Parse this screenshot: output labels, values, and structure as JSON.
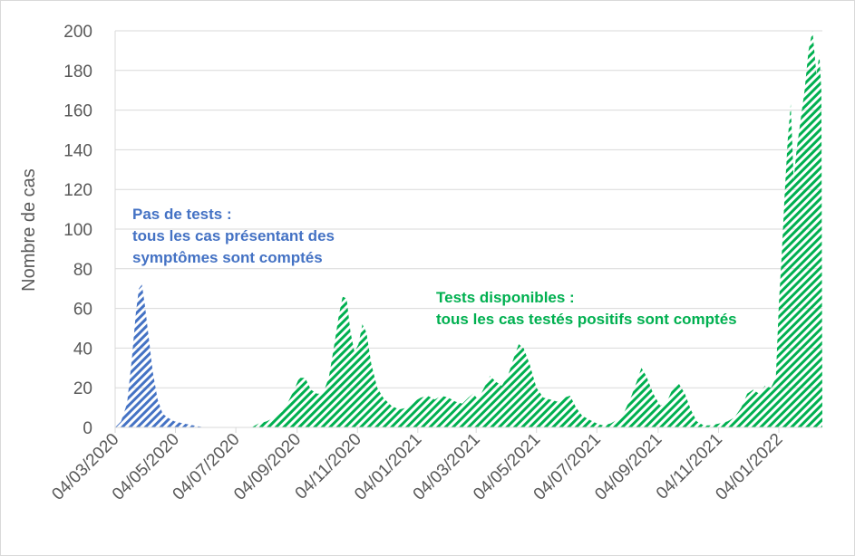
{
  "colors": {
    "phase1": "#4472c4",
    "phase2": "#00b050",
    "grid": "#d9d9d9",
    "text": "#595959"
  },
  "chart_data": {
    "type": "area",
    "title": "",
    "xlabel": "",
    "ylabel": "Nombre de cas",
    "ylim": [
      0,
      200
    ],
    "y_ticks": [
      0,
      20,
      40,
      60,
      80,
      100,
      120,
      140,
      160,
      180,
      200
    ],
    "xlim": [
      "2020-03-04",
      "2022-02-17"
    ],
    "x_ticks": [
      "04/03/2020",
      "04/05/2020",
      "04/07/2020",
      "04/09/2020",
      "04/11/2020",
      "04/01/2021",
      "04/03/2021",
      "04/05/2021",
      "04/07/2021",
      "04/09/2021",
      "04/11/2021",
      "04/01/2022"
    ],
    "grid": true,
    "series": [
      {
        "color": "#4472c4",
        "pattern": "diagonal-hatch",
        "points": [
          [
            "2020-03-04",
            0
          ],
          [
            "2020-03-10",
            3
          ],
          [
            "2020-03-16",
            12
          ],
          [
            "2020-03-21",
            35
          ],
          [
            "2020-03-25",
            58
          ],
          [
            "2020-03-28",
            70
          ],
          [
            "2020-03-31",
            72
          ],
          [
            "2020-04-03",
            62
          ],
          [
            "2020-04-07",
            45
          ],
          [
            "2020-04-11",
            28
          ],
          [
            "2020-04-16",
            14
          ],
          [
            "2020-04-21",
            7
          ],
          [
            "2020-04-26",
            5
          ],
          [
            "2020-05-03",
            3
          ],
          [
            "2020-05-12",
            2
          ],
          [
            "2020-05-22",
            1
          ],
          [
            "2020-06-02",
            0
          ]
        ]
      },
      {
        "color": "#00b050",
        "pattern": "diagonal-hatch",
        "points": [
          [
            "2020-07-20",
            0
          ],
          [
            "2020-07-27",
            2
          ],
          [
            "2020-08-04",
            3
          ],
          [
            "2020-08-12",
            5
          ],
          [
            "2020-08-20",
            8
          ],
          [
            "2020-08-26",
            13
          ],
          [
            "2020-09-01",
            19
          ],
          [
            "2020-09-06",
            25
          ],
          [
            "2020-09-12",
            25
          ],
          [
            "2020-09-18",
            19
          ],
          [
            "2020-09-24",
            17
          ],
          [
            "2020-09-30",
            17
          ],
          [
            "2020-10-06",
            25
          ],
          [
            "2020-10-11",
            40
          ],
          [
            "2020-10-16",
            56
          ],
          [
            "2020-10-20",
            66
          ],
          [
            "2020-10-24",
            65
          ],
          [
            "2020-10-28",
            48
          ],
          [
            "2020-11-01",
            38
          ],
          [
            "2020-11-05",
            42
          ],
          [
            "2020-11-09",
            52
          ],
          [
            "2020-11-13",
            48
          ],
          [
            "2020-11-18",
            32
          ],
          [
            "2020-11-24",
            20
          ],
          [
            "2020-11-30",
            15
          ],
          [
            "2020-12-08",
            11
          ],
          [
            "2020-12-16",
            9
          ],
          [
            "2020-12-24",
            10
          ],
          [
            "2020-12-31",
            13
          ],
          [
            "2021-01-07",
            15
          ],
          [
            "2021-01-14",
            16
          ],
          [
            "2021-01-21",
            14
          ],
          [
            "2021-01-28",
            16
          ],
          [
            "2021-02-04",
            15
          ],
          [
            "2021-02-11",
            13
          ],
          [
            "2021-02-18",
            12
          ],
          [
            "2021-02-24",
            15
          ],
          [
            "2021-03-01",
            17
          ],
          [
            "2021-03-06",
            14
          ],
          [
            "2021-03-12",
            20
          ],
          [
            "2021-03-18",
            26
          ],
          [
            "2021-03-24",
            23
          ],
          [
            "2021-03-30",
            21
          ],
          [
            "2021-04-05",
            26
          ],
          [
            "2021-04-11",
            35
          ],
          [
            "2021-04-16",
            42
          ],
          [
            "2021-04-21",
            40
          ],
          [
            "2021-04-27",
            32
          ],
          [
            "2021-05-04",
            20
          ],
          [
            "2021-05-11",
            15
          ],
          [
            "2021-05-18",
            14
          ],
          [
            "2021-05-25",
            13
          ],
          [
            "2021-06-01",
            15
          ],
          [
            "2021-06-07",
            16
          ],
          [
            "2021-06-13",
            10
          ],
          [
            "2021-06-19",
            6
          ],
          [
            "2021-06-26",
            4
          ],
          [
            "2021-07-04",
            2
          ],
          [
            "2021-07-10",
            1
          ],
          [
            "2021-07-18",
            2
          ],
          [
            "2021-07-25",
            4
          ],
          [
            "2021-08-01",
            8
          ],
          [
            "2021-08-08",
            16
          ],
          [
            "2021-08-14",
            24
          ],
          [
            "2021-08-18",
            30
          ],
          [
            "2021-08-23",
            26
          ],
          [
            "2021-08-30",
            17
          ],
          [
            "2021-09-06",
            11
          ],
          [
            "2021-09-12",
            12
          ],
          [
            "2021-09-19",
            20
          ],
          [
            "2021-09-25",
            22
          ],
          [
            "2021-10-01",
            17
          ],
          [
            "2021-10-07",
            9
          ],
          [
            "2021-10-13",
            3
          ],
          [
            "2021-10-20",
            1
          ],
          [
            "2021-10-27",
            1
          ],
          [
            "2021-11-05",
            2
          ],
          [
            "2021-11-13",
            3
          ],
          [
            "2021-11-20",
            5
          ],
          [
            "2021-11-27",
            10
          ],
          [
            "2021-12-03",
            17
          ],
          [
            "2021-12-09",
            19
          ],
          [
            "2021-12-15",
            17
          ],
          [
            "2021-12-21",
            21
          ],
          [
            "2021-12-27",
            20
          ],
          [
            "2022-01-01",
            25
          ],
          [
            "2022-01-04",
            62
          ],
          [
            "2022-01-07",
            88
          ],
          [
            "2022-01-10",
            118
          ],
          [
            "2022-01-13",
            145
          ],
          [
            "2022-01-16",
            163
          ],
          [
            "2022-01-19",
            125
          ],
          [
            "2022-01-22",
            140
          ],
          [
            "2022-01-26",
            155
          ],
          [
            "2022-01-30",
            170
          ],
          [
            "2022-02-03",
            190
          ],
          [
            "2022-02-07",
            200
          ],
          [
            "2022-02-11",
            178
          ],
          [
            "2022-02-14",
            188
          ],
          [
            "2022-02-16",
            170
          ],
          [
            "2022-02-17",
            0
          ]
        ]
      }
    ],
    "annotations": [
      {
        "lines": [
          "Pas de tests :",
          "tous les cas présentant des",
          "symptômes sont comptés"
        ],
        "color": "#4472c4"
      },
      {
        "lines": [
          "Tests disponibles :",
          "tous les cas testés positifs sont comptés"
        ],
        "color": "#00b050"
      }
    ]
  }
}
